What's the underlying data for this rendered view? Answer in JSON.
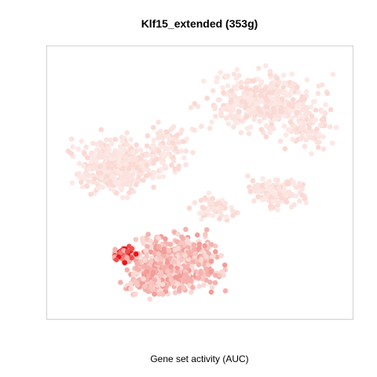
{
  "chart_data": {
    "type": "scatter",
    "title": "Klf15_extended (353g)",
    "xlabel": "Gene set activity (AUC)",
    "ylabel": "",
    "axes_visible": false,
    "grid": false,
    "legend": "none",
    "colors": {
      "frame": "#d0d0d0",
      "low": "#fbe3df",
      "mid": "#f6b1ad",
      "high": "#ee4e4e",
      "max": "#e8161a"
    },
    "encoding": "point color = AUC activity, light pink (low) to red (high)",
    "clusters": [
      {
        "region": "upper-right",
        "color_level": "low"
      },
      {
        "region": "left",
        "color_level": "low"
      },
      {
        "region": "center-right",
        "color_level": "low"
      },
      {
        "region": "bottom-center",
        "color_level": "mid"
      },
      {
        "region": "bottom-left",
        "color_level": "high"
      }
    ]
  }
}
